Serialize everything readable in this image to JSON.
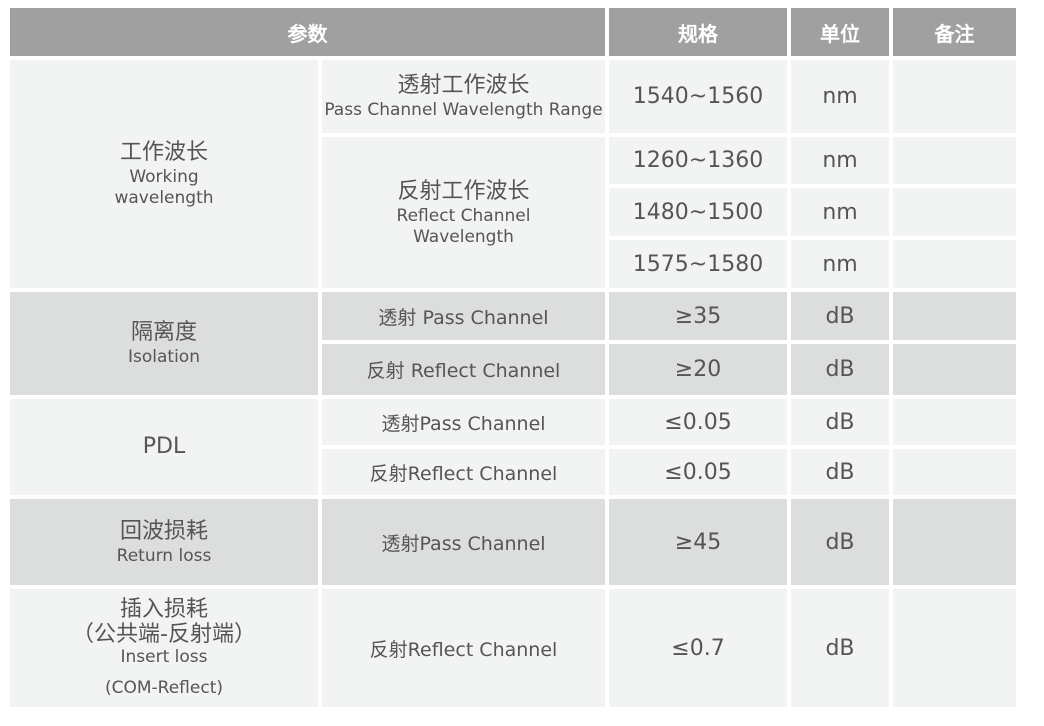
{
  "header": {
    "param": "参数",
    "spec": "规格",
    "unit": "单位",
    "note": "备注"
  },
  "colors": {
    "header_bg": "#a0a0a0",
    "row_light": "#f2f3f3",
    "row_gray": "#dcdddd",
    "text": "#555555"
  },
  "rows": {
    "working": {
      "zh": "工作波长",
      "en": "Working wavelength",
      "pass": {
        "zh": "透射工作波长",
        "en": "Pass Channel Wavelength Range",
        "spec": "1540~1560",
        "unit": "nm"
      },
      "reflect": {
        "zh": "反射工作波长",
        "en": "Reflect Channel Wavelength",
        "items": [
          {
            "spec": "1260~1360",
            "unit": "nm"
          },
          {
            "spec": "1480~1500",
            "unit": "nm"
          },
          {
            "spec": "1575~1580",
            "unit": "nm"
          }
        ]
      }
    },
    "isolation": {
      "zh": "隔离度",
      "en": "Isolation",
      "items": [
        {
          "label": "透射 Pass Channel",
          "spec": "≥35",
          "unit": "dB"
        },
        {
          "label": "反射 Reflect Channel",
          "spec": "≥20",
          "unit": "dB"
        }
      ]
    },
    "pdl": {
      "label": "PDL",
      "items": [
        {
          "label": "透射Pass Channel",
          "spec": "≤0.05",
          "unit": "dB"
        },
        {
          "label": "反射Reflect Channel",
          "spec": "≤0.05",
          "unit": "dB"
        }
      ]
    },
    "return_loss": {
      "zh": "回波损耗",
      "en": "Return loss",
      "label": "透射Pass Channel",
      "spec": "≥45",
      "unit": "dB"
    },
    "insert_loss": {
      "zh": "插入损耗",
      "zh2": "（公共端-反射端）",
      "en": "Insert loss",
      "en2": "(COM-Reflect)",
      "label": "反射Reflect Channel",
      "spec": "≤0.7",
      "unit": "dB"
    }
  }
}
